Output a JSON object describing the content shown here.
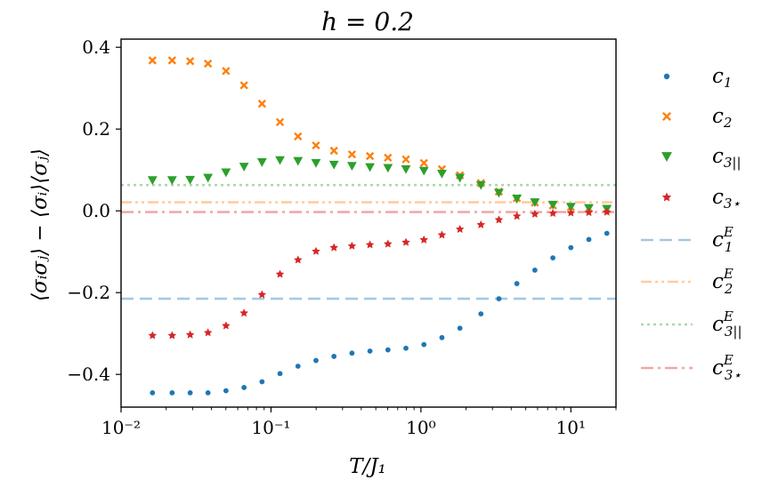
{
  "chart_data": {
    "type": "scatter",
    "title": "h = 0.2",
    "xlabel": "T/J₁",
    "ylabel": "⟨σᵢσⱼ⟩ − ⟨σᵢ⟩⟨σⱼ⟩",
    "xscale": "log",
    "xlim": [
      0.01,
      20
    ],
    "ylim": [
      -0.48,
      0.42
    ],
    "xticks": [
      {
        "value": 0.01,
        "label": "10⁻²"
      },
      {
        "value": 0.1,
        "label": "10⁻¹"
      },
      {
        "value": 1,
        "label": "10⁰"
      },
      {
        "value": 10,
        "label": "10¹"
      }
    ],
    "yticks": [
      {
        "value": -0.4,
        "label": "−0.4"
      },
      {
        "value": -0.2,
        "label": "−0.2"
      },
      {
        "value": 0.0,
        "label": "0.0"
      },
      {
        "value": 0.2,
        "label": "0.2"
      },
      {
        "value": 0.4,
        "label": "0.4"
      }
    ],
    "x": [
      0.0162,
      0.0219,
      0.0289,
      0.038,
      0.0501,
      0.0661,
      0.0871,
      0.1148,
      0.1514,
      0.1995,
      0.263,
      0.3467,
      0.4571,
      0.6026,
      0.7943,
      1.0471,
      1.3804,
      1.8197,
      2.5119,
      3.3113,
      4.3652,
      5.7544,
      7.5858,
      10.0,
      13.1826,
      17.378
    ],
    "series": [
      {
        "name": "c₁",
        "marker": "dot",
        "color": "#1f77b4",
        "values": [
          -0.445,
          -0.445,
          -0.445,
          -0.445,
          -0.44,
          -0.432,
          -0.418,
          -0.398,
          -0.38,
          -0.366,
          -0.356,
          -0.348,
          -0.343,
          -0.34,
          -0.336,
          -0.327,
          -0.31,
          -0.287,
          -0.252,
          -0.215,
          -0.178,
          -0.145,
          -0.115,
          -0.09,
          -0.07,
          -0.055
        ]
      },
      {
        "name": "c₂",
        "marker": "x",
        "color": "#ff7f0e",
        "values": [
          0.368,
          0.368,
          0.366,
          0.36,
          0.342,
          0.307,
          0.262,
          0.217,
          0.182,
          0.16,
          0.147,
          0.138,
          0.134,
          0.13,
          0.126,
          0.117,
          0.102,
          0.087,
          0.068,
          0.047,
          0.031,
          0.02,
          0.013,
          0.009,
          0.006,
          0.004
        ]
      },
      {
        "name": "c₃||",
        "marker": "triangle-down",
        "color": "#2ca02c",
        "values": [
          0.075,
          0.075,
          0.076,
          0.081,
          0.094,
          0.108,
          0.119,
          0.124,
          0.122,
          0.117,
          0.113,
          0.11,
          0.107,
          0.105,
          0.102,
          0.098,
          0.091,
          0.081,
          0.063,
          0.044,
          0.03,
          0.021,
          0.015,
          0.01,
          0.007,
          0.005
        ]
      },
      {
        "name": "c₃⋆",
        "marker": "star",
        "color": "#d62728",
        "values": [
          -0.305,
          -0.305,
          -0.303,
          -0.298,
          -0.281,
          -0.25,
          -0.205,
          -0.155,
          -0.12,
          -0.099,
          -0.09,
          -0.086,
          -0.083,
          -0.081,
          -0.077,
          -0.071,
          -0.059,
          -0.045,
          -0.034,
          -0.022,
          -0.013,
          -0.008,
          -0.006,
          -0.005,
          -0.004,
          -0.003
        ]
      }
    ],
    "reference_lines": [
      {
        "name": "c₁ᴱ",
        "value": -0.215,
        "color": "#1f77b4",
        "style": "dashed"
      },
      {
        "name": "c₂ᴱ",
        "value": 0.021,
        "color": "#ff7f0e",
        "style": "dashdotdot"
      },
      {
        "name": "c₃||ᴱ",
        "value": 0.063,
        "color": "#2ca02c",
        "style": "dotted"
      },
      {
        "name": "c₃⋆ᴱ",
        "value": -0.003,
        "color": "#d62728",
        "style": "dashdot"
      }
    ],
    "legend": {
      "placement": "outside-right",
      "entries": [
        {
          "base": "c",
          "sub": "1",
          "sup": ""
        },
        {
          "base": "c",
          "sub": "2",
          "sup": ""
        },
        {
          "base": "c",
          "sub": "3||",
          "sup": ""
        },
        {
          "base": "c",
          "sub": "3⋆",
          "sup": ""
        },
        {
          "base": "c",
          "sub": "1",
          "sup": "E"
        },
        {
          "base": "c",
          "sub": "2",
          "sup": "E"
        },
        {
          "base": "c",
          "sub": "3||",
          "sup": "E"
        },
        {
          "base": "c",
          "sub": "3⋆",
          "sup": "E"
        }
      ]
    }
  }
}
